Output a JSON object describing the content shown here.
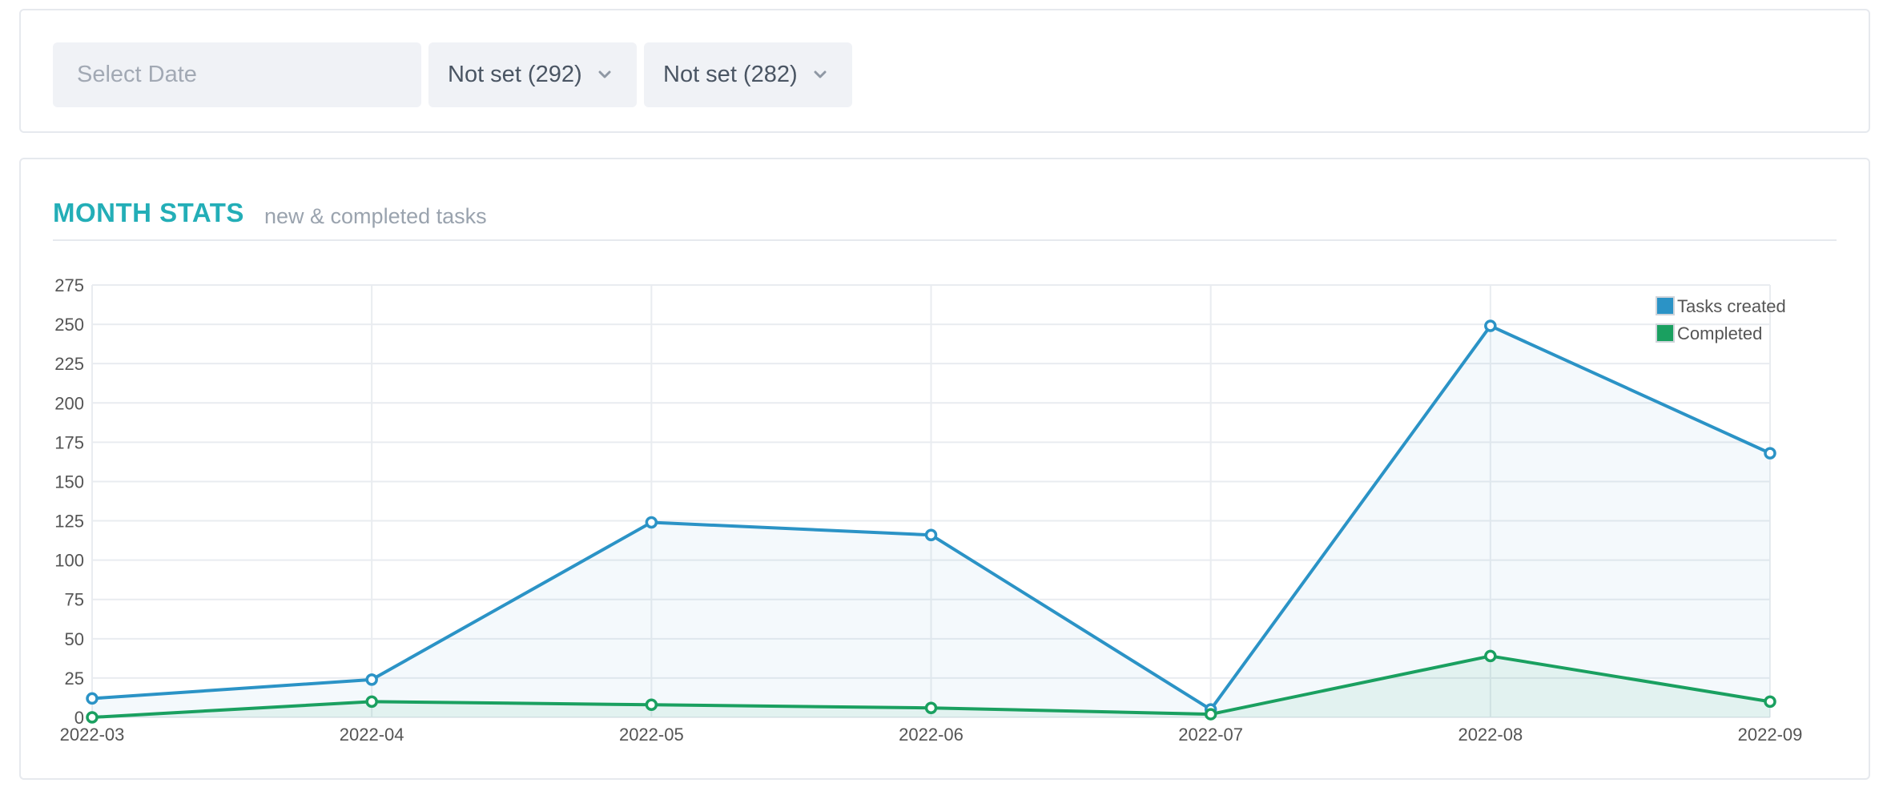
{
  "filters": {
    "date_placeholder": "Select Date",
    "select_1_value": "Not set (292)",
    "select_2_value": "Not set (282)"
  },
  "stats": {
    "title": "MONTH STATS",
    "subtitle": "new & completed tasks"
  },
  "colors": {
    "accent": "#23aeb7",
    "tasks_created": "#2b93c6",
    "completed": "#1aa060"
  },
  "chart_data": {
    "type": "line",
    "x": [
      "2022-03",
      "2022-04",
      "2022-05",
      "2022-06",
      "2022-07",
      "2022-08",
      "2022-09"
    ],
    "series": [
      {
        "name": "Tasks created",
        "values": [
          12,
          24,
          124,
          116,
          5,
          249,
          168
        ],
        "color": "#2b93c6"
      },
      {
        "name": "Completed",
        "values": [
          0,
          10,
          8,
          6,
          2,
          39,
          10
        ],
        "color": "#1aa060"
      }
    ],
    "ylim": [
      0,
      275
    ],
    "yticks": [
      0,
      25,
      50,
      75,
      100,
      125,
      150,
      175,
      200,
      225,
      250,
      275
    ],
    "grid": true,
    "area_fill": true,
    "legend": "top-right"
  }
}
